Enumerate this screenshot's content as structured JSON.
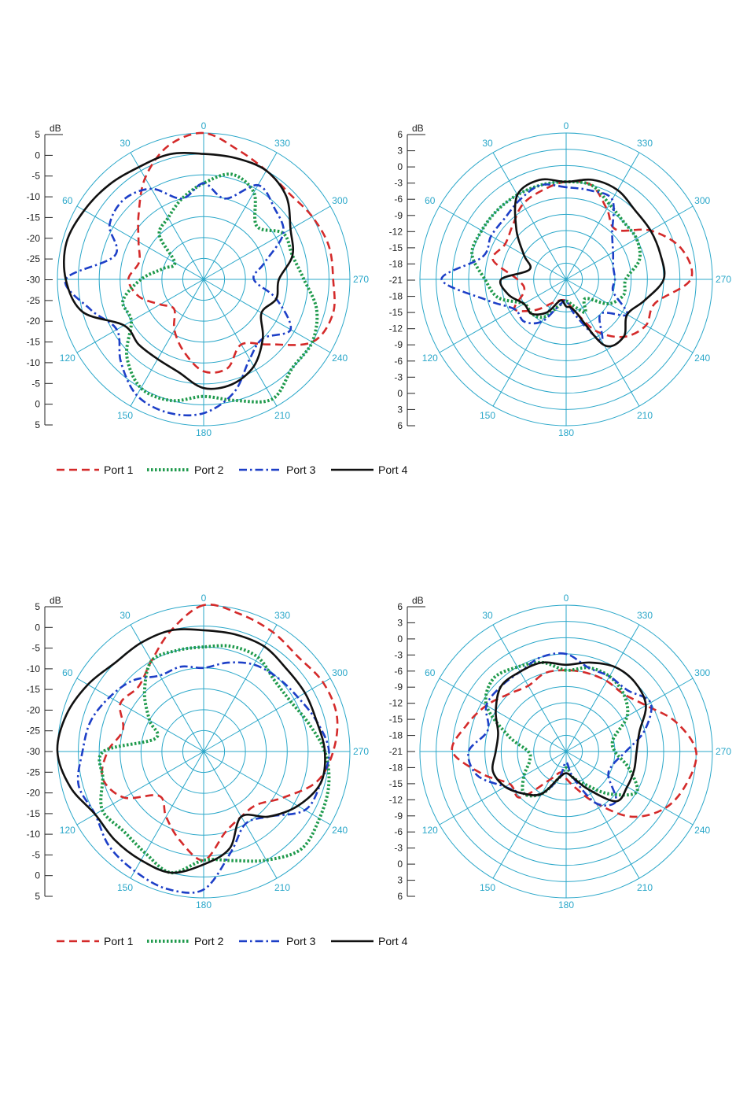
{
  "figure": {
    "legend_entries": [
      "Port 1",
      "Port 2",
      "Port 3",
      "Port 4"
    ]
  },
  "colors": {
    "grid": "#2aa7c9",
    "port1": "#d42a2a",
    "port2": "#1f9a4c",
    "port3": "#1d3fc7",
    "port4": "#111111"
  },
  "chart_data": [
    {
      "type": "polar-line",
      "unit_label": "dB",
      "radial_tick_labels": [
        "5",
        "0",
        "-5",
        "-10",
        "-15",
        "-20",
        "-25",
        "-30",
        "-25",
        "-20",
        "-15",
        "-10",
        "-5",
        "0",
        "5"
      ],
      "rlim": [
        -30,
        5
      ],
      "angle_labels": [
        "0",
        "30",
        "60",
        "270",
        "120",
        "150",
        "180",
        "210",
        "240",
        "300",
        "330"
      ],
      "angle_label_values": [
        0,
        30,
        60,
        270,
        120,
        150,
        180,
        210,
        240,
        300,
        330
      ],
      "theta": [
        0,
        15,
        30,
        45,
        60,
        75,
        90,
        105,
        120,
        135,
        150,
        165,
        180,
        195,
        210,
        225,
        240,
        255,
        270,
        285,
        300,
        315,
        330,
        345
      ],
      "series": [
        {
          "name": "Port 1",
          "values": [
            5,
            3,
            -2,
            -8,
            -12,
            -14,
            -12,
            -14,
            -18,
            -20,
            -16,
            -12,
            -8,
            -8,
            -12,
            -8,
            0,
            2,
            1,
            1,
            0,
            -1,
            0,
            2
          ]
        },
        {
          "name": "Port 2",
          "values": [
            -7,
            -10,
            -13,
            -15,
            -22,
            -20,
            -15,
            -10,
            -10,
            -4,
            0,
            0,
            -2,
            0,
            3,
            0,
            0,
            -2,
            -6,
            -8,
            -8,
            -12,
            -6,
            -4
          ]
        },
        {
          "name": "Port 3",
          "values": [
            -7,
            -10,
            -5,
            -3,
            -4,
            -8,
            3,
            -2,
            -6,
            -2,
            2,
            3,
            2,
            -2,
            -8,
            -10,
            -6,
            -12,
            -18,
            -15,
            -8,
            -6,
            -4,
            -10
          ]
        },
        {
          "name": "Port 4",
          "values": [
            0,
            1,
            1,
            2,
            3,
            4,
            3,
            0,
            -8,
            -8,
            -8,
            -7,
            -4,
            -4,
            -6,
            -10,
            -14,
            -12,
            -12,
            -8,
            -6,
            -2,
            0,
            0
          ]
        }
      ]
    },
    {
      "type": "polar-line",
      "unit_label": "dB",
      "radial_tick_labels": [
        "6",
        "3",
        "0",
        "-3",
        "-6",
        "-9",
        "-12",
        "-15",
        "-18",
        "-21",
        "-18",
        "-15",
        "-12",
        "-9",
        "-6",
        "-3",
        "0",
        "3",
        "6"
      ],
      "rlim": [
        -21,
        6
      ],
      "angle_labels": [
        "0",
        "30",
        "60",
        "270",
        "120",
        "150",
        "180",
        "210",
        "240",
        "300",
        "330"
      ],
      "angle_label_values": [
        0,
        30,
        60,
        270,
        120,
        150,
        180,
        210,
        240,
        300,
        330
      ],
      "theta": [
        0,
        15,
        30,
        45,
        60,
        75,
        90,
        105,
        120,
        135,
        150,
        165,
        180,
        195,
        210,
        225,
        240,
        255,
        270,
        285,
        300,
        315,
        330,
        345
      ],
      "series": [
        {
          "name": "Port 1",
          "values": [
            -3,
            -4,
            -5,
            -7,
            -8,
            -7,
            -12,
            -13,
            -10,
            -13,
            -16,
            -17,
            -17,
            -15,
            -10,
            -6,
            -4,
            -4,
            2,
            1,
            -3,
            -8,
            -6,
            -3
          ]
        },
        {
          "name": "Port 2",
          "values": [
            -3,
            -3,
            -3,
            -3,
            -3,
            -3,
            -6,
            -8,
            -12,
            -12,
            -13,
            -16,
            -17,
            -16,
            -14,
            -16,
            -12,
            -10,
            -10,
            -7,
            -6,
            -6,
            -5,
            -3
          ]
        },
        {
          "name": "Port 3",
          "values": [
            -4,
            -3,
            -4,
            -5,
            -5,
            -5,
            2,
            -6,
            -10,
            -10,
            -12,
            -16,
            -17,
            -14,
            -8,
            -12,
            -8,
            -12,
            -12,
            -12,
            -11,
            -9,
            -4,
            -4
          ]
        },
        {
          "name": "Port 4",
          "values": [
            -3,
            -2,
            -3,
            -8,
            -12,
            -14,
            -9,
            -10,
            -12,
            -12,
            -14,
            -17,
            -16,
            -15,
            -7,
            -6,
            -8,
            -6,
            -3,
            -3,
            -3,
            -3,
            -2,
            -2
          ]
        }
      ]
    },
    {
      "type": "polar-line",
      "unit_label": "dB",
      "radial_tick_labels": [
        "5",
        "0",
        "-5",
        "-10",
        "-15",
        "-20",
        "-25",
        "-30",
        "-25",
        "-20",
        "-15",
        "-10",
        "-5",
        "0",
        "5"
      ],
      "rlim": [
        -30,
        5
      ],
      "angle_labels": [
        "0",
        "30",
        "60",
        "270",
        "120",
        "150",
        "180",
        "210",
        "240",
        "300",
        "330"
      ],
      "angle_label_values": [
        0,
        30,
        60,
        270,
        120,
        150,
        180,
        210,
        240,
        300,
        330
      ],
      "theta": [
        0,
        15,
        30,
        45,
        60,
        75,
        90,
        105,
        120,
        135,
        150,
        165,
        180,
        195,
        210,
        225,
        240,
        255,
        270,
        285,
        300,
        315,
        330,
        345
      ],
      "series": [
        {
          "name": "Port 1",
          "values": [
            5,
            0,
            -5,
            -8,
            -7,
            -10,
            -7,
            -5,
            -8,
            -15,
            -12,
            -8,
            -4,
            -10,
            -12,
            -12,
            -8,
            -2,
            1,
            3,
            3,
            2,
            3,
            4
          ]
        },
        {
          "name": "Port 2",
          "values": [
            -5,
            -5,
            -5,
            -10,
            -15,
            -18,
            -6,
            -5,
            -2,
            -3,
            -2,
            0,
            -4,
            -3,
            0,
            3,
            2,
            1,
            -1,
            -4,
            -6,
            -6,
            -4,
            -4
          ]
        },
        {
          "name": "Port 3",
          "values": [
            -10,
            -9,
            -9,
            -6,
            -4,
            -2,
            -1,
            1,
            0,
            2,
            3,
            4,
            3,
            -5,
            -10,
            -8,
            -2,
            -1,
            0,
            -2,
            -4,
            -5,
            -6,
            -8
          ]
        },
        {
          "name": "Port 4",
          "values": [
            -1,
            0,
            0,
            0,
            2,
            4,
            5,
            3,
            0,
            0,
            0,
            0,
            -3,
            -6,
            -12,
            -8,
            -4,
            -1,
            -1,
            -2,
            -2,
            -2,
            -1,
            -1
          ]
        }
      ]
    },
    {
      "type": "polar-line",
      "unit_label": "dB",
      "radial_tick_labels": [
        "6",
        "3",
        "0",
        "-3",
        "-6",
        "-9",
        "-12",
        "-15",
        "-18",
        "-21",
        "-18",
        "-15",
        "-12",
        "-9",
        "-6",
        "-3",
        "0",
        "3",
        "6"
      ],
      "rlim": [
        -21,
        6
      ],
      "angle_labels": [
        "0",
        "30",
        "60",
        "270",
        "120",
        "150",
        "180",
        "210",
        "240",
        "300",
        "330"
      ],
      "angle_label_values": [
        0,
        30,
        60,
        270,
        120,
        150,
        180,
        210,
        240,
        300,
        330
      ],
      "theta": [
        0,
        15,
        30,
        45,
        60,
        75,
        90,
        105,
        120,
        135,
        150,
        165,
        180,
        195,
        210,
        225,
        240,
        255,
        270,
        285,
        300,
        315,
        330,
        345
      ],
      "series": [
        {
          "name": "Port 1",
          "values": [
            -6,
            -6,
            -7,
            -6,
            -4,
            -2,
            0,
            -5,
            -9,
            -9,
            -15,
            -17,
            -16,
            -14,
            -10,
            -4,
            0,
            2,
            3,
            0,
            -4,
            -6,
            -6,
            -6
          ]
        },
        {
          "name": "Port 2",
          "values": [
            -6,
            -4,
            -3,
            -2,
            -4,
            -10,
            -14,
            -14,
            -12,
            -10,
            -12,
            -16,
            -18,
            -16,
            -14,
            -10,
            -6,
            -9,
            -12,
            -12,
            -8,
            -6,
            -5,
            -5
          ]
        },
        {
          "name": "Port 3",
          "values": [
            -3,
            -3,
            -4,
            -4,
            -4,
            -6,
            -3,
            -4,
            -8,
            -10,
            -12,
            -16,
            -19,
            -16,
            -10,
            -8,
            -12,
            -12,
            -10,
            -6,
            -3,
            -5,
            -5,
            -5
          ]
        },
        {
          "name": "Port 4",
          "values": [
            -5,
            -4,
            -4,
            -4,
            -6,
            -8,
            -8,
            -7,
            -8,
            -10,
            -12,
            -16,
            -17,
            -16,
            -13,
            -8,
            -8,
            -8,
            -8,
            -7,
            -4,
            -3,
            -3,
            -4
          ]
        }
      ]
    }
  ]
}
